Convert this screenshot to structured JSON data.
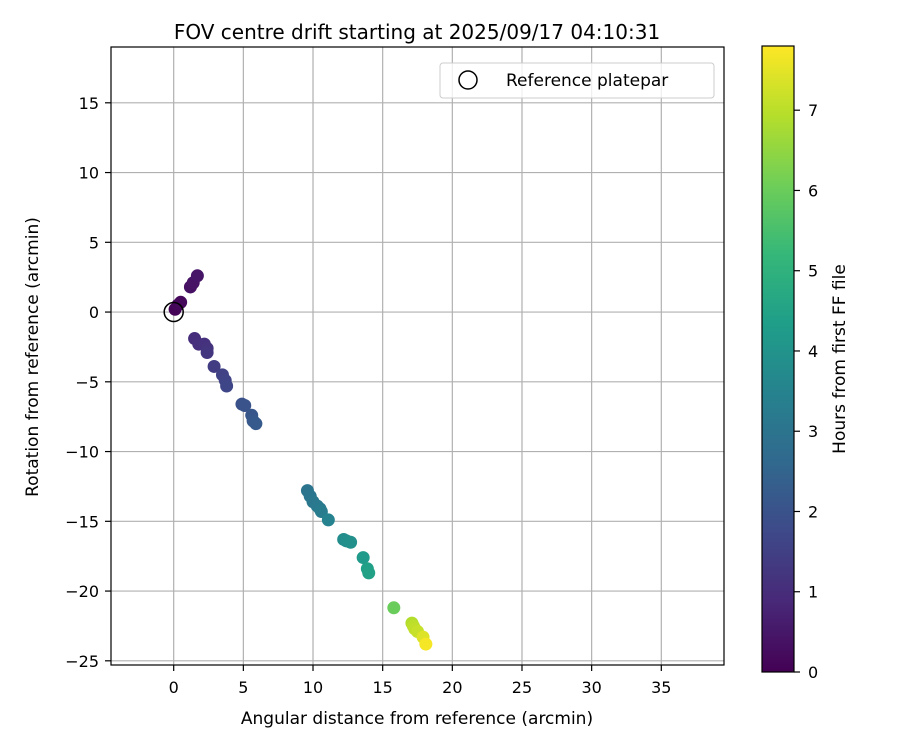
{
  "chart_data": {
    "type": "scatter",
    "title": "FOV centre drift starting at 2025/09/17 04:10:31",
    "xlabel": "Angular distance from reference (arcmin)",
    "ylabel": "Rotation from reference (arcmin)",
    "xlim": [
      -4.5,
      39.5
    ],
    "ylim": [
      -25.3,
      19.0
    ],
    "x_ticks": [
      0,
      5,
      10,
      15,
      20,
      25,
      30,
      35
    ],
    "x_tick_labels": [
      "0",
      "5",
      "10",
      "15",
      "20",
      "25",
      "30",
      "35"
    ],
    "y_ticks": [
      15,
      10,
      5,
      0,
      -5,
      -10,
      -15,
      -20,
      -25
    ],
    "y_tick_labels": [
      "15",
      "10",
      "5",
      "0",
      "−5",
      "−10",
      "−15",
      "−20",
      "−25"
    ],
    "grid": true,
    "legend": {
      "position": "top-right",
      "entries": [
        {
          "label": "Reference platepar",
          "marker": "open-circle",
          "x": 0,
          "y": 0
        }
      ]
    },
    "colorbar": {
      "label": "Hours from first FF file",
      "range": [
        0,
        7.8
      ],
      "ticks": [
        0,
        1,
        2,
        3,
        4,
        5,
        6,
        7
      ],
      "tick_labels": [
        "0",
        "1",
        "2",
        "3",
        "4",
        "5",
        "6",
        "7"
      ],
      "colormap": "viridis",
      "colormap_stops": [
        "#440154",
        "#482878",
        "#3e4989",
        "#31688e",
        "#26828e",
        "#1f9e89",
        "#35b779",
        "#6ece58",
        "#b5de2b",
        "#fde725"
      ]
    },
    "series": [
      {
        "name": "FOV centre drift",
        "points": [
          {
            "x": 0.1,
            "y": 0.2,
            "c": 0.05
          },
          {
            "x": 0.3,
            "y": 0.5,
            "c": 0.1
          },
          {
            "x": 0.5,
            "y": 0.7,
            "c": 0.15
          },
          {
            "x": 1.2,
            "y": 1.8,
            "c": 0.35
          },
          {
            "x": 1.4,
            "y": 2.1,
            "c": 0.4
          },
          {
            "x": 1.7,
            "y": 2.6,
            "c": 0.45
          },
          {
            "x": 1.5,
            "y": -1.9,
            "c": 1.0
          },
          {
            "x": 1.8,
            "y": -2.3,
            "c": 1.05
          },
          {
            "x": 2.2,
            "y": -2.3,
            "c": 1.1
          },
          {
            "x": 2.4,
            "y": -2.6,
            "c": 1.15
          },
          {
            "x": 2.4,
            "y": -2.9,
            "c": 1.2
          },
          {
            "x": 2.9,
            "y": -3.9,
            "c": 1.4
          },
          {
            "x": 3.5,
            "y": -4.5,
            "c": 1.55
          },
          {
            "x": 3.7,
            "y": -4.9,
            "c": 1.6
          },
          {
            "x": 3.8,
            "y": -5.3,
            "c": 1.65
          },
          {
            "x": 4.9,
            "y": -6.6,
            "c": 1.95
          },
          {
            "x": 5.1,
            "y": -6.7,
            "c": 2.0
          },
          {
            "x": 5.6,
            "y": -7.4,
            "c": 2.1
          },
          {
            "x": 5.7,
            "y": -7.8,
            "c": 2.15
          },
          {
            "x": 5.9,
            "y": -8.0,
            "c": 2.2
          },
          {
            "x": 9.6,
            "y": -12.8,
            "c": 3.0
          },
          {
            "x": 9.8,
            "y": -13.2,
            "c": 3.05
          },
          {
            "x": 10.0,
            "y": -13.6,
            "c": 3.1
          },
          {
            "x": 10.3,
            "y": -13.9,
            "c": 3.15
          },
          {
            "x": 10.5,
            "y": -14.1,
            "c": 3.2
          },
          {
            "x": 10.6,
            "y": -14.3,
            "c": 3.25
          },
          {
            "x": 11.1,
            "y": -14.9,
            "c": 3.45
          },
          {
            "x": 12.2,
            "y": -16.3,
            "c": 3.8
          },
          {
            "x": 12.4,
            "y": -16.4,
            "c": 3.85
          },
          {
            "x": 12.7,
            "y": -16.5,
            "c": 3.9
          },
          {
            "x": 13.6,
            "y": -17.6,
            "c": 4.2
          },
          {
            "x": 13.9,
            "y": -18.4,
            "c": 4.4
          },
          {
            "x": 14.0,
            "y": -18.7,
            "c": 4.45
          },
          {
            "x": 15.8,
            "y": -21.2,
            "c": 6.0
          },
          {
            "x": 17.1,
            "y": -22.3,
            "c": 6.9
          },
          {
            "x": 17.2,
            "y": -22.5,
            "c": 7.0
          },
          {
            "x": 17.3,
            "y": -22.7,
            "c": 7.05
          },
          {
            "x": 17.5,
            "y": -22.9,
            "c": 7.15
          },
          {
            "x": 17.9,
            "y": -23.3,
            "c": 7.4
          },
          {
            "x": 18.1,
            "y": -23.8,
            "c": 7.7
          }
        ]
      }
    ]
  }
}
